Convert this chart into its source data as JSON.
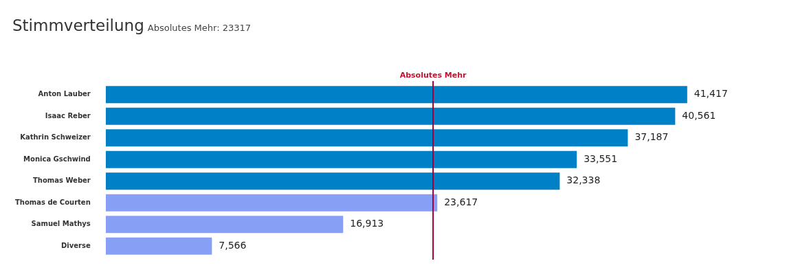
{
  "chart_data": {
    "type": "bar",
    "orientation": "horizontal",
    "title": "Stimmverteilung",
    "subtitle": "Absolutes Mehr: 23317",
    "categories": [
      "Anton Lauber",
      "Isaac Reber",
      "Kathrin Schweizer",
      "Monica Gschwind",
      "Thomas Weber",
      "Thomas de Courten",
      "Samuel Mathys",
      "Diverse"
    ],
    "values": [
      41417,
      40561,
      37187,
      33551,
      32338,
      23617,
      16913,
      7566
    ],
    "colors": [
      "#0080c6",
      "#0080c6",
      "#0080c6",
      "#0080c6",
      "#0080c6",
      "#87a0f5",
      "#87a0f5",
      "#87a0f5"
    ],
    "value_labels": [
      "41,417",
      "40,561",
      "37,187",
      "33,551",
      "32,338",
      "23,617",
      "16,913",
      "7,566"
    ],
    "ref_lines": [
      {
        "axis": "x",
        "value": 23317,
        "label": "Absolutes Mehr",
        "color": "#a0003a"
      }
    ],
    "legend": false,
    "tick_labels": "y"
  }
}
